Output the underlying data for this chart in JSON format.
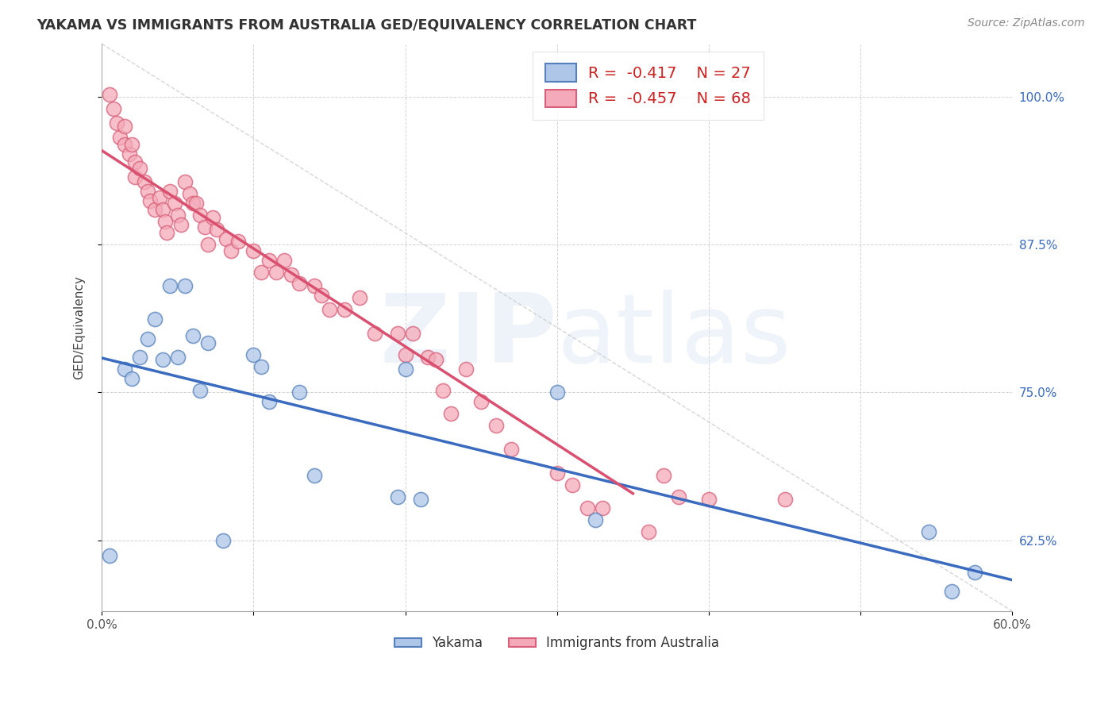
{
  "title": "YAKAMA VS IMMIGRANTS FROM AUSTRALIA GED/EQUIVALENCY CORRELATION CHART",
  "source": "Source: ZipAtlas.com",
  "ylabel": "GED/Equivalency",
  "xlim": [
    0.0,
    0.6
  ],
  "ylim": [
    0.565,
    1.045
  ],
  "blue_color": "#aec6e8",
  "blue_edge": "#5580bb",
  "pink_color": "#f4aab8",
  "pink_edge": "#d8607a",
  "blue_line_color": "#3a6bbf",
  "pink_line_color": "#d95070",
  "legend_r1": "-0.417",
  "legend_n1": "27",
  "legend_r2": "-0.457",
  "legend_n2": "68",
  "blue_scatter_x": [
    0.005,
    0.015,
    0.02,
    0.025,
    0.03,
    0.035,
    0.04,
    0.045,
    0.05,
    0.055,
    0.06,
    0.065,
    0.07,
    0.08,
    0.1,
    0.105,
    0.11,
    0.13,
    0.14,
    0.195,
    0.2,
    0.21,
    0.3,
    0.325,
    0.545,
    0.56,
    0.575
  ],
  "blue_scatter_y": [
    0.612,
    0.77,
    0.762,
    0.78,
    0.795,
    0.812,
    0.778,
    0.84,
    0.78,
    0.84,
    0.798,
    0.752,
    0.792,
    0.625,
    0.782,
    0.772,
    0.742,
    0.75,
    0.68,
    0.662,
    0.77,
    0.66,
    0.75,
    0.642,
    0.632,
    0.582,
    0.598
  ],
  "pink_scatter_x": [
    0.005,
    0.008,
    0.01,
    0.012,
    0.015,
    0.015,
    0.018,
    0.02,
    0.022,
    0.022,
    0.025,
    0.028,
    0.03,
    0.032,
    0.035,
    0.038,
    0.04,
    0.042,
    0.043,
    0.045,
    0.048,
    0.05,
    0.052,
    0.055,
    0.058,
    0.06,
    0.062,
    0.065,
    0.068,
    0.07,
    0.073,
    0.076,
    0.082,
    0.085,
    0.09,
    0.1,
    0.105,
    0.11,
    0.115,
    0.12,
    0.125,
    0.13,
    0.14,
    0.145,
    0.15,
    0.16,
    0.17,
    0.18,
    0.195,
    0.2,
    0.205,
    0.215,
    0.22,
    0.225,
    0.23,
    0.24,
    0.25,
    0.26,
    0.27,
    0.3,
    0.31,
    0.32,
    0.33,
    0.36,
    0.37,
    0.38,
    0.4,
    0.45
  ],
  "pink_scatter_y": [
    1.002,
    0.99,
    0.978,
    0.966,
    0.975,
    0.96,
    0.952,
    0.96,
    0.945,
    0.932,
    0.94,
    0.928,
    0.92,
    0.912,
    0.905,
    0.915,
    0.905,
    0.895,
    0.885,
    0.92,
    0.91,
    0.9,
    0.892,
    0.928,
    0.918,
    0.91,
    0.91,
    0.9,
    0.89,
    0.875,
    0.898,
    0.888,
    0.88,
    0.87,
    0.878,
    0.87,
    0.852,
    0.862,
    0.852,
    0.862,
    0.85,
    0.842,
    0.84,
    0.832,
    0.82,
    0.82,
    0.83,
    0.8,
    0.8,
    0.782,
    0.8,
    0.78,
    0.778,
    0.752,
    0.732,
    0.77,
    0.742,
    0.722,
    0.702,
    0.682,
    0.672,
    0.652,
    0.652,
    0.632,
    0.68,
    0.662,
    0.66,
    0.66
  ],
  "ref_line_x": [
    0.0,
    0.6
  ],
  "ref_line_y": [
    1.045,
    0.565
  ]
}
